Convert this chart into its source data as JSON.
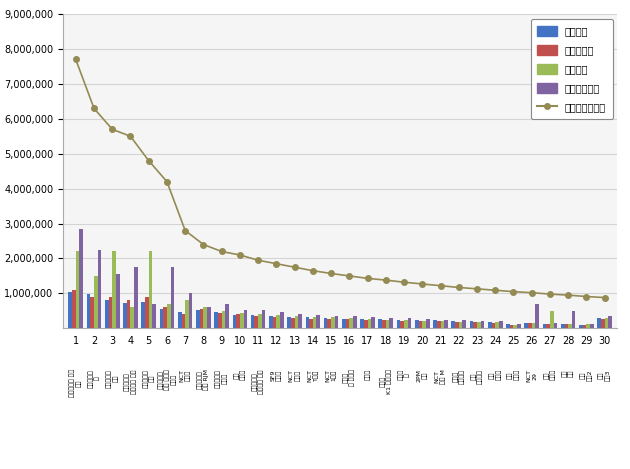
{
  "xlabels": [
    "1",
    "2",
    "3",
    "4",
    "5",
    "6",
    "7",
    "8",
    "9",
    "10",
    "11",
    "12",
    "13",
    "14",
    "15",
    "16",
    "17",
    "18",
    "19",
    "20",
    "21",
    "22",
    "23",
    "24",
    "25",
    "26",
    "27",
    "28",
    "29",
    "30"
  ],
  "artist_labels": [
    "방탄소년단 지민\n지민",
    "방탄소년단\n뷔",
    "방탄소년단\n정국",
    "이스트비트\n블랙핑크 지수",
    "방탄소년단\n슈가",
    "방탄소년단\n유이 오리지\n날수록",
    "NCT\n팔로우",
    "방탄소년단\n수로 RJM",
    "방탄소년단\n샤이닝",
    "광우\n도도해",
    "방탄소년단\n해피니스 팬미",
    "SF9\n바이뉴",
    "NCT\n나비요",
    "NCT\nT계열",
    "NCT\n1계열",
    "사이드\n로 팬미팅",
    "사이드",
    "다정이\nK1 큰이야기",
    "사이드\n큰",
    "2PM\n성원",
    "NCT\n팔로 M",
    "다정이\n큰이야기",
    "하이\n온문화해",
    "가지\n팬가요",
    "경성\n로곡음",
    "NCT\n29",
    "영소\n다이아",
    "영소\n건강",
    "영소\n건강2",
    "영소\n건강3"
  ],
  "participation": [
    1050000,
    970000,
    820000,
    730000,
    760000,
    560000,
    460000,
    510000,
    460000,
    390000,
    390000,
    360000,
    330000,
    320000,
    290000,
    280000,
    265000,
    255000,
    245000,
    235000,
    225000,
    205000,
    195000,
    185000,
    110000,
    155000,
    135000,
    125000,
    105000,
    285000
  ],
  "media": [
    1100000,
    910000,
    910000,
    810000,
    910000,
    610000,
    410000,
    560000,
    430000,
    410000,
    360000,
    310000,
    290000,
    280000,
    265000,
    255000,
    245000,
    225000,
    215000,
    205000,
    195000,
    185000,
    175000,
    165000,
    95000,
    145000,
    125000,
    115000,
    95000,
    255000
  ],
  "communication": [
    2200000,
    1500000,
    2200000,
    600000,
    2200000,
    700000,
    800000,
    600000,
    500000,
    450000,
    420000,
    380000,
    350000,
    330000,
    310000,
    290000,
    270000,
    250000,
    230000,
    220000,
    210000,
    190000,
    180000,
    170000,
    100000,
    150000,
    490000,
    130000,
    110000,
    295000
  ],
  "community": [
    2850000,
    2250000,
    1550000,
    1750000,
    710000,
    1750000,
    1010000,
    610000,
    710000,
    510000,
    510000,
    460000,
    410000,
    390000,
    365000,
    345000,
    325000,
    305000,
    285000,
    265000,
    245000,
    225000,
    215000,
    205000,
    125000,
    710000,
    165000,
    505000,
    135000,
    355000
  ],
  "brand": [
    7700000,
    6300000,
    5700000,
    5500000,
    4800000,
    4200000,
    2800000,
    2400000,
    2200000,
    2100000,
    1950000,
    1850000,
    1750000,
    1650000,
    1570000,
    1500000,
    1430000,
    1380000,
    1320000,
    1270000,
    1220000,
    1170000,
    1130000,
    1090000,
    1050000,
    1020000,
    980000,
    950000,
    910000,
    880000
  ],
  "bar_color_participation": "#4472C4",
  "bar_color_media": "#C0504D",
  "bar_color_communication": "#9BBB59",
  "bar_color_community": "#8064A2",
  "line_color": "#948A54",
  "ylim": [
    0,
    9000000
  ],
  "yticks": [
    1000000,
    2000000,
    3000000,
    4000000,
    5000000,
    6000000,
    7000000,
    8000000,
    9000000
  ],
  "background_color": "#ffffff",
  "plot_bg_color": "#f5f5f5",
  "legend_labels": [
    "참여지수",
    "미디어지수",
    "소통지수",
    "커뮤니티지수",
    "브랜드평판지수"
  ],
  "figsize": [
    6.3,
    4.69
  ],
  "dpi": 100
}
